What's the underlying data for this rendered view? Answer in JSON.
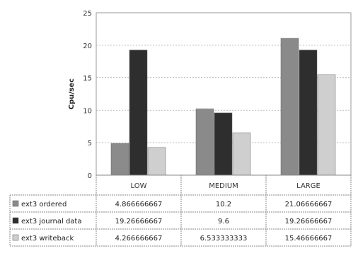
{
  "chart_data": {
    "type": "bar",
    "title": "",
    "xlabel": "",
    "ylabel": "Cpu/sec",
    "ylim": [
      0,
      25
    ],
    "yticks": [
      0,
      5,
      10,
      15,
      20,
      25
    ],
    "grid": true,
    "legend": "table-left",
    "categories": [
      "LOW",
      "MEDIUM",
      "LARGE"
    ],
    "series": [
      {
        "name": "ext3 ordered",
        "values": [
          4.866666667,
          10.2,
          21.06666667
        ],
        "labels": [
          "4.866666667",
          "10.2",
          "21.06666667"
        ],
        "color": "#8a8a8a"
      },
      {
        "name": "ext3 journal data",
        "values": [
          19.26666667,
          9.6,
          19.26666667
        ],
        "labels": [
          "19.26666667",
          "9.6",
          "19.26666667"
        ],
        "color": "#2e2e2e"
      },
      {
        "name": "ext3 writeback",
        "values": [
          4.266666667,
          6.533333333,
          15.46666667
        ],
        "labels": [
          "4.266666667",
          "6.533333333",
          "15.46666667"
        ],
        "color": "#cfcfcf"
      }
    ]
  }
}
